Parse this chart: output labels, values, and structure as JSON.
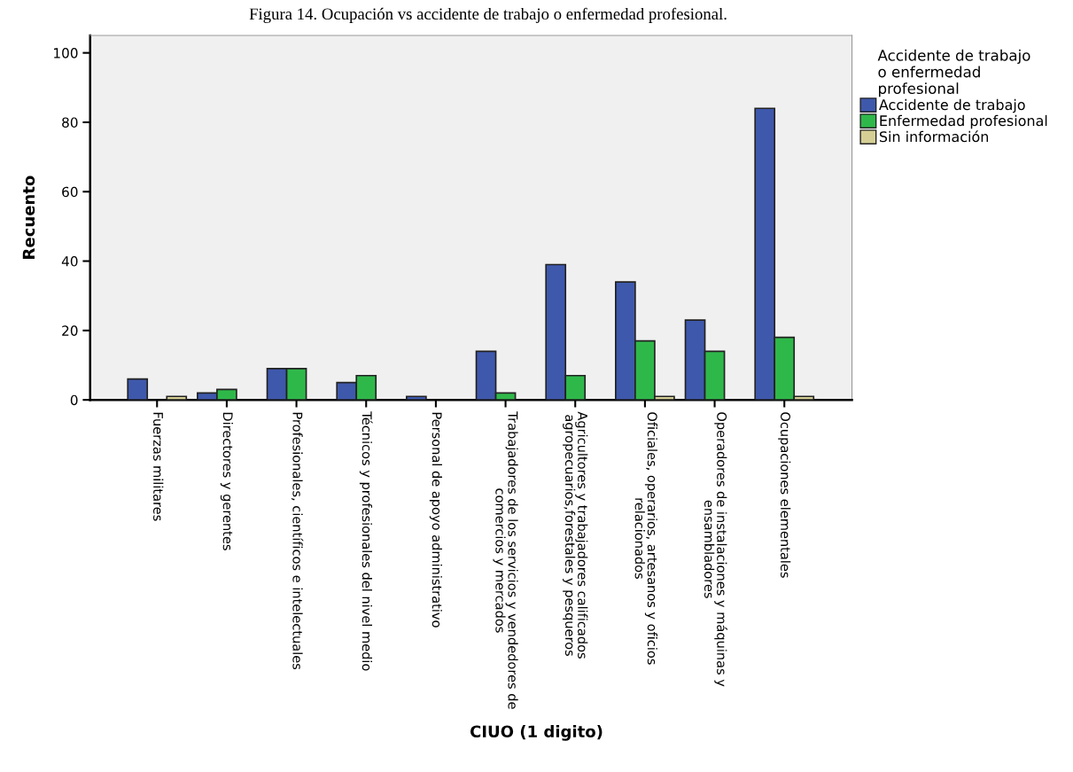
{
  "chart_data": {
    "type": "bar",
    "title": "Figura 14. Ocupación vs accidente de trabajo o enfermedad profesional.",
    "xlabel": "CIUO (1 digito)",
    "ylabel": "Recuento",
    "legend_title": "Accidente de trabajo\no enfermedad\nprofesional",
    "legend": "right",
    "categories": [
      "Fuerzas militares",
      "Directores y gerentes",
      "Profesionales, científicos e intelectuales",
      "Técnicos y profesionales del nivel medio",
      "Personal de apoyo administrativo",
      "Trabajadores de los servicios y vendedores de\ncomercios y mercados",
      "Agricultores y trabajadores calificados\nagropecuarios,forestales y pesqueros",
      "Oficiales, operarios, artesanos y oficios\nrelacionados",
      "Operadores de instalaciones y máquinas y\nensambladores",
      "Ocupaciones elementales"
    ],
    "series": [
      {
        "name": "Accidente de trabajo",
        "color": "#3e58ac",
        "values": [
          6,
          2,
          9,
          5,
          1,
          14,
          39,
          34,
          23,
          84
        ]
      },
      {
        "name": "Enfermedad profesional",
        "color": "#2fb84a",
        "values": [
          null,
          3,
          9,
          7,
          null,
          2,
          7,
          17,
          14,
          18
        ]
      },
      {
        "name": "Sin información",
        "color": "#d5cf95",
        "values": [
          1,
          null,
          null,
          null,
          null,
          null,
          null,
          1,
          null,
          1
        ]
      }
    ],
    "ylim": [
      0,
      105
    ],
    "yticks": [
      0,
      20,
      40,
      60,
      80,
      100
    ],
    "grid": false
  }
}
